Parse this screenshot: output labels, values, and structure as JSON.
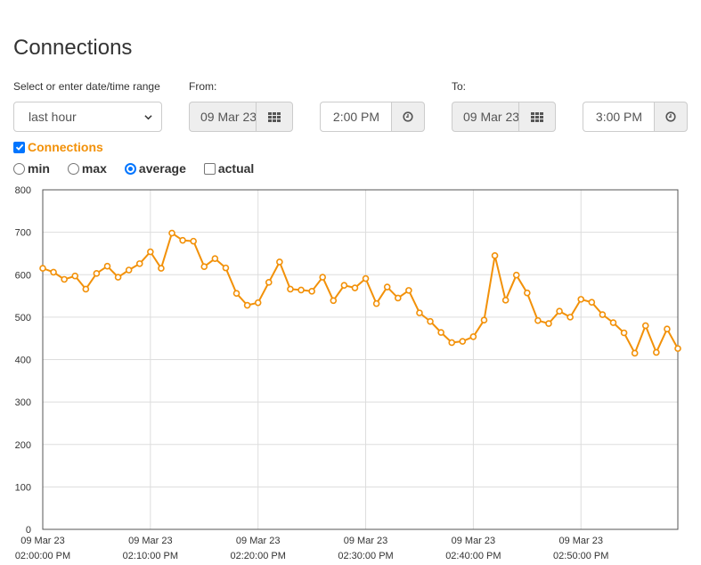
{
  "header": {
    "title": "Connections"
  },
  "filters": {
    "range_label": "Select or enter date/time range",
    "range_value": "last hour",
    "from_label": "From:",
    "from_date": "09 Mar 23",
    "from_time": "2:00 PM",
    "to_label": "To:",
    "to_date": "09 Mar 23",
    "to_time": "3:00 PM"
  },
  "series_toggle": {
    "label": "Connections",
    "checked": true,
    "color": "#f29109"
  },
  "modes": [
    {
      "label": "min",
      "selected": false,
      "type": "radio"
    },
    {
      "label": "max",
      "selected": false,
      "type": "radio"
    },
    {
      "label": "average",
      "selected": true,
      "type": "radio"
    },
    {
      "label": "actual",
      "selected": false,
      "type": "checkbox"
    }
  ],
  "icons": {
    "calendar": "calendar-grid-icon",
    "clock": "clock-icon",
    "dropdown": "chevron-down-icon"
  },
  "chart_data": {
    "type": "line",
    "title": "",
    "xlabel": "",
    "ylabel": "",
    "ylim": [
      0,
      800
    ],
    "yticks": [
      0,
      100,
      200,
      300,
      400,
      500,
      600,
      700,
      800
    ],
    "xlim": [
      "2023-03-09 14:00:00",
      "2023-03-09 14:59:00"
    ],
    "xticks": [
      {
        "date": "09 Mar 23",
        "time": "02:00:00 PM"
      },
      {
        "date": "09 Mar 23",
        "time": "02:10:00 PM"
      },
      {
        "date": "09 Mar 23",
        "time": "02:20:00 PM"
      },
      {
        "date": "09 Mar 23",
        "time": "02:30:00 PM"
      },
      {
        "date": "09 Mar 23",
        "time": "02:40:00 PM"
      },
      {
        "date": "09 Mar 23",
        "time": "02:50:00 PM"
      }
    ],
    "grid": true,
    "series": [
      {
        "color": "#f29109",
        "x": [
          "14:00",
          "14:01",
          "14:02",
          "14:03",
          "14:04",
          "14:05",
          "14:06",
          "14:07",
          "14:08",
          "14:09",
          "14:10",
          "14:11",
          "14:12",
          "14:13",
          "14:14",
          "14:15",
          "14:16",
          "14:17",
          "14:18",
          "14:19",
          "14:20",
          "14:21",
          "14:22",
          "14:23",
          "14:24",
          "14:25",
          "14:26",
          "14:27",
          "14:28",
          "14:29",
          "14:30",
          "14:31",
          "14:32",
          "14:33",
          "14:34",
          "14:35",
          "14:36",
          "14:37",
          "14:38",
          "14:39",
          "14:40",
          "14:41",
          "14:42",
          "14:43",
          "14:44",
          "14:45",
          "14:46",
          "14:47",
          "14:48",
          "14:49",
          "14:50",
          "14:51",
          "14:52",
          "14:53",
          "14:54",
          "14:55",
          "14:56",
          "14:57",
          "14:58",
          "14:59"
        ],
        "values": [
          615,
          606,
          589,
          597,
          566,
          603,
          620,
          594,
          611,
          626,
          654,
          615,
          698,
          681,
          679,
          619,
          638,
          616,
          556,
          528,
          534,
          582,
          630,
          566,
          564,
          561,
          594,
          539,
          575,
          569,
          591,
          532,
          571,
          545,
          563,
          510,
          490,
          464,
          440,
          443,
          454,
          493,
          645,
          540,
          599,
          557,
          492,
          485,
          514,
          500,
          542,
          535,
          506,
          487,
          463,
          415,
          480,
          417,
          472,
          426
        ]
      }
    ]
  }
}
